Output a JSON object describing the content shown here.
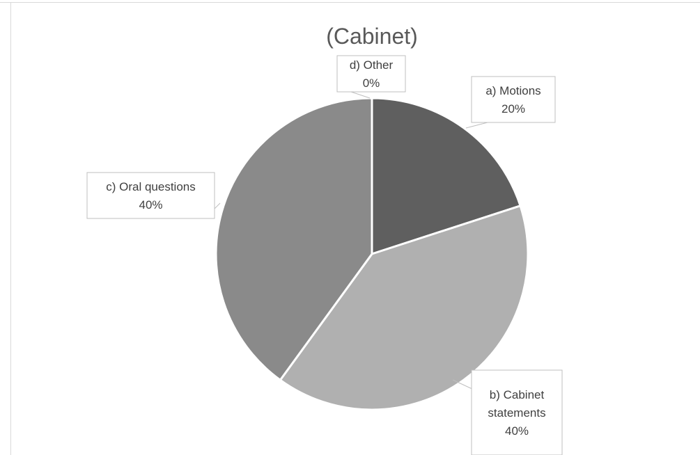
{
  "chart_data": {
    "type": "pie",
    "title": "(Cabinet)",
    "slices": [
      {
        "label_lines": [
          "a) Motions"
        ],
        "value": 20,
        "value_label": "20%",
        "color": "#5f5f5f"
      },
      {
        "label_lines": [
          "b) Cabinet",
          "statements"
        ],
        "value": 40,
        "value_label": "40%",
        "color": "#b0b0b0"
      },
      {
        "label_lines": [
          "c) Oral questions"
        ],
        "value": 40,
        "value_label": "40%",
        "color": "#8a8a8a"
      },
      {
        "label_lines": [
          "d) Other"
        ],
        "value": 0,
        "value_label": "0%",
        "color": "#d0d0d0"
      }
    ]
  }
}
